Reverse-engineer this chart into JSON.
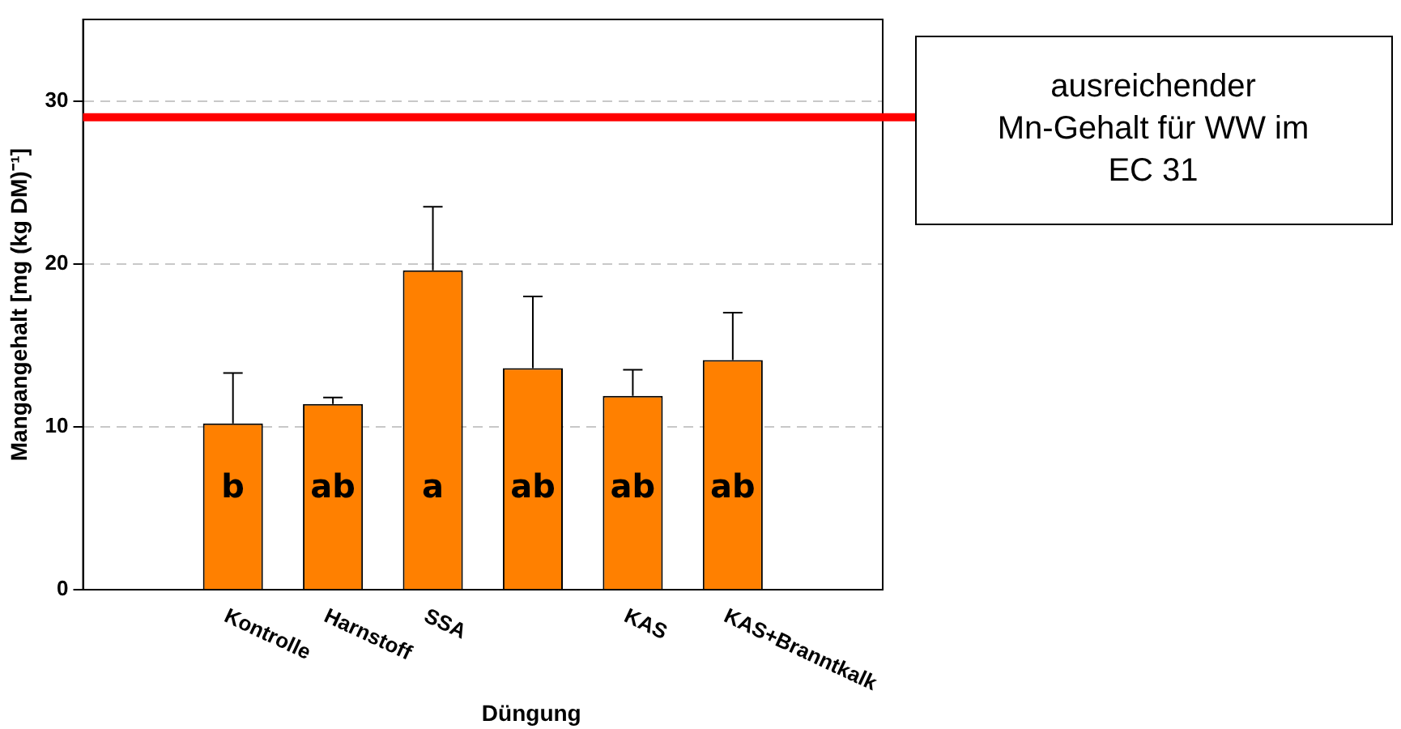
{
  "chart_data": {
    "type": "bar",
    "xlabel": "Düngung",
    "ylabel": "Mangangehalt [mg (kg DM)⁻¹]",
    "categories": [
      "Kontrolle",
      "Harnstoff",
      "SSA",
      null,
      "KAS",
      "KAS+Branntkalk"
    ],
    "values": [
      10.2,
      11.4,
      19.6,
      13.6,
      11.9,
      14.1
    ],
    "color": "#ff8000",
    "errors": [
      [
        10.2,
        13.3
      ],
      [
        11.4,
        11.8
      ],
      [
        19.6,
        23.5
      ],
      [
        13.6,
        18.0
      ],
      [
        11.9,
        13.5
      ],
      [
        14.1,
        17.0
      ]
    ],
    "ylim": [
      0,
      35
    ],
    "yticks": [
      0,
      10,
      20,
      30
    ],
    "grid": "y",
    "legend": false,
    "ref_lines": [
      {
        "axis": "y",
        "value": 29,
        "label": "ausreichender Mn-Gehalt für WW im EC 31",
        "color": "#ff0000"
      }
    ],
    "annotations": [
      "b",
      "ab",
      "a",
      "ab",
      "ab",
      "ab"
    ]
  }
}
